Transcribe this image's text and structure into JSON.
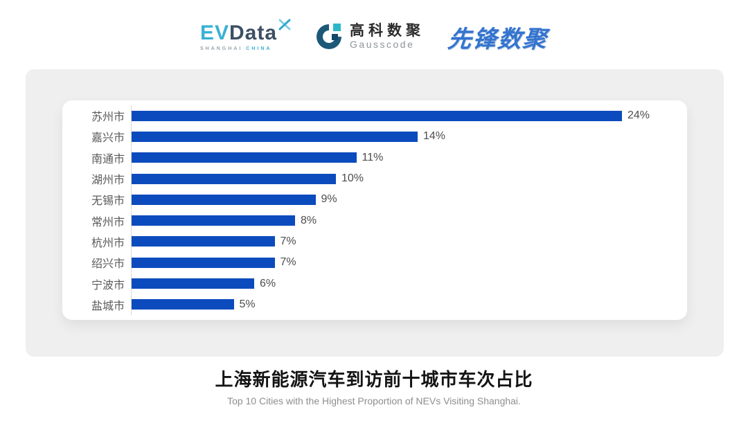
{
  "header": {
    "evdata": {
      "ev": "EV",
      "data": "Data",
      "sub_left": "SHANGHAI",
      "sub_right": "CHINA"
    },
    "gausscode": {
      "cn": "高科数聚",
      "en": "Gausscode"
    },
    "xianfeng": {
      "text": "先锋数聚"
    }
  },
  "chart_data": {
    "type": "bar",
    "orientation": "horizontal",
    "categories": [
      "苏州市",
      "嘉兴市",
      "南通市",
      "湖州市",
      "无锡市",
      "常州市",
      "杭州市",
      "绍兴市",
      "宁波市",
      "盐城市"
    ],
    "values": [
      24,
      14,
      11,
      10,
      9,
      8,
      7,
      7,
      6,
      5
    ],
    "value_labels": [
      "24%",
      "14%",
      "11%",
      "10%",
      "9%",
      "8%",
      "7%",
      "7%",
      "6%",
      "5%"
    ],
    "value_unit": "%",
    "xlim": [
      0,
      26
    ],
    "grid": false,
    "legend": null,
    "bar_color": "#0c4bbd",
    "title": "上海新能源汽车到访前十城市车次占比",
    "subtitle": "Top 10 Cities with the Highest Proportion of  NEVs Visiting Shanghai."
  },
  "colors": {
    "panel_bg": "#efefef",
    "card_bg": "#ffffff",
    "bar_blue": "#0c4bbd",
    "axis_line": "#d9d9d9",
    "category_text": "#595959",
    "value_text": "#4d4d4d",
    "title_text": "#141414",
    "subtitle_text": "#8e8e8e",
    "evdata_teal": "#3ab0d4",
    "evdata_dark": "#3d4f63",
    "gausscode_navy": "#1d5878",
    "gausscode_teal": "#2bb7c9",
    "xianfeng_blue": "#3374ce"
  }
}
